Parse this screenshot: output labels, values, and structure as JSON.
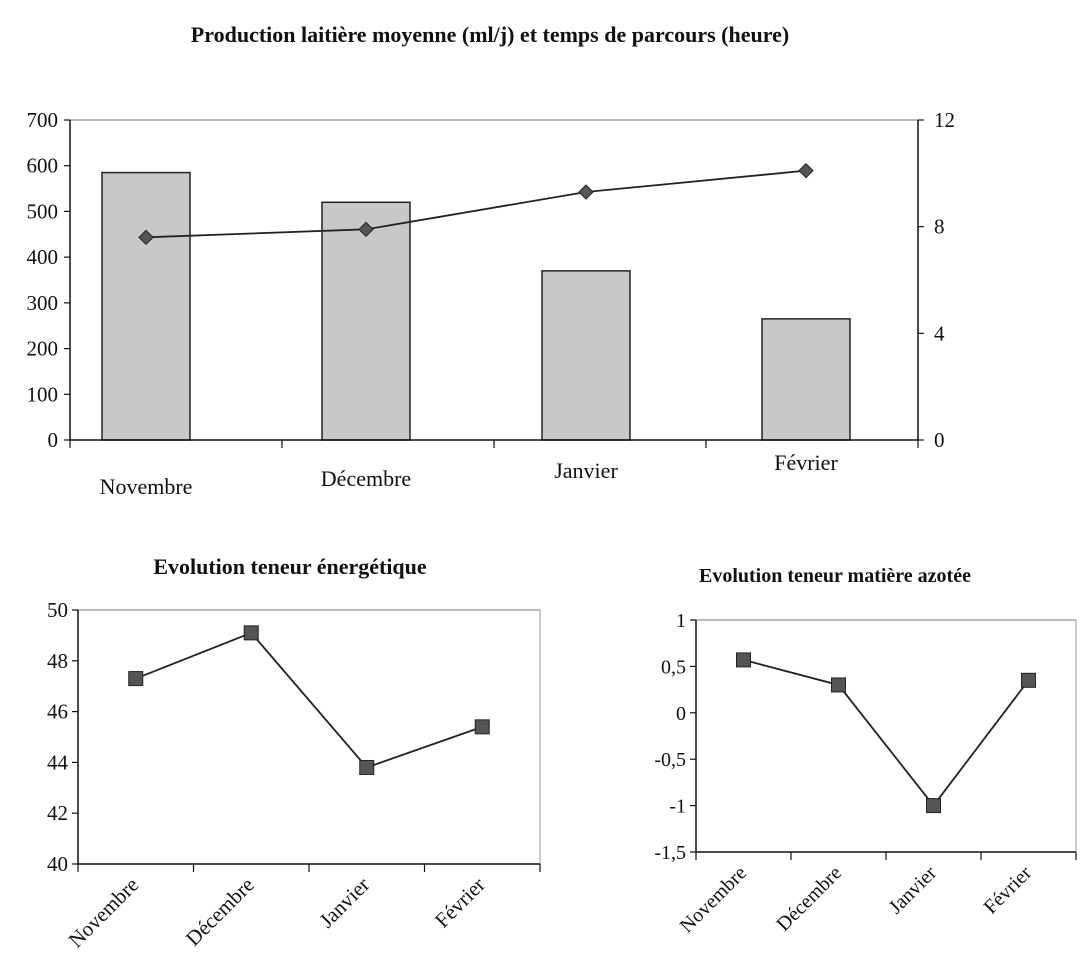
{
  "chart_data": [
    {
      "type": "bar",
      "title": "Production laitière moyenne (ml/j) et temps de parcours (heure)",
      "categories": [
        "Novembre",
        "Décembre",
        "Janvier",
        "Février"
      ],
      "series": [
        {
          "type": "bar",
          "axis": "left",
          "values": [
            585,
            520,
            370,
            265
          ]
        },
        {
          "type": "line",
          "axis": "right",
          "values": [
            7.6,
            7.9,
            9.3,
            10.1
          ]
        }
      ],
      "ylim": [
        0,
        700
      ],
      "yticks": [
        0,
        100,
        200,
        300,
        400,
        500,
        600,
        700
      ],
      "y2lim": [
        0,
        12
      ],
      "y2ticks": [
        0,
        4,
        8,
        12
      ],
      "grid": false,
      "legend": "none",
      "colors": {
        "bar": "#c8c8c8",
        "line": "#222222",
        "marker": "#555555"
      }
    },
    {
      "type": "line",
      "title": "Evolution teneur énergétique",
      "categories": [
        "Novembre",
        "Décembre",
        "Janvier",
        "Février"
      ],
      "values": [
        47.3,
        49.1,
        43.8,
        45.4
      ],
      "ylim": [
        40,
        50
      ],
      "yticks": [
        40,
        42,
        44,
        46,
        48,
        50
      ],
      "grid": false,
      "legend": "none",
      "colors": {
        "line": "#222222",
        "marker": "#555555"
      }
    },
    {
      "type": "line",
      "title": "Evolution teneur matière azotée",
      "categories": [
        "Novembre",
        "Décembre",
        "Janvier",
        "Février"
      ],
      "values": [
        0.57,
        0.3,
        -1.0,
        0.35
      ],
      "ylim": [
        -1.5,
        1
      ],
      "yticks": [
        "-1,5",
        "-1",
        "-0,5",
        "0",
        "0,5",
        "1"
      ],
      "grid": false,
      "legend": "none",
      "colors": {
        "line": "#222222",
        "marker": "#555555"
      }
    }
  ]
}
